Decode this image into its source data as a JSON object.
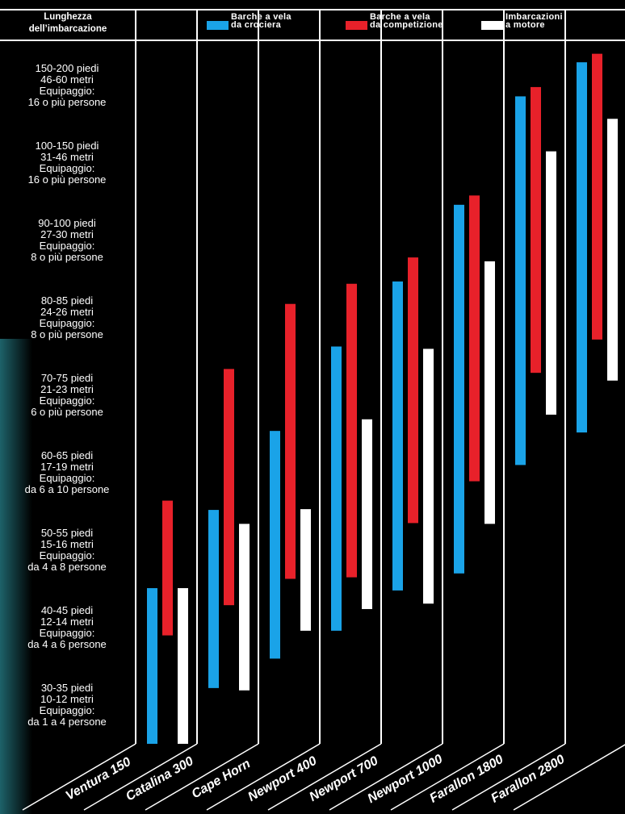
{
  "chart_data": {
    "type": "range-bar",
    "y_header": "Lunghezza\ndell’imbarcazione",
    "categories": [
      "Ventura 150",
      "Catalina 300",
      "Cape Horn",
      "Newport 400",
      "Newport 700",
      "Newport 1000",
      "Farallon 1800",
      "Farallon 2800"
    ],
    "series": [
      {
        "name": "Barche a vela\nda crociera",
        "color": "#1aa3e8",
        "low": [
          0,
          0.72,
          1.1,
          1.46,
          1.98,
          2.2,
          3.6,
          4.02
        ],
        "high": [
          2.01,
          3.02,
          4.04,
          5.13,
          5.97,
          6.96,
          8.36,
          8.8
        ]
      },
      {
        "name": "Barche a vela\nda competizione",
        "color": "#e8212a",
        "low": [
          1.4,
          1.79,
          2.13,
          2.15,
          2.85,
          3.39,
          4.79,
          5.22
        ],
        "high": [
          3.14,
          4.84,
          5.68,
          5.94,
          6.28,
          7.08,
          8.48,
          8.91
        ]
      },
      {
        "name": "Imbarcazioni\na motore",
        "color": "#ffffff",
        "low": [
          0,
          0.69,
          1.46,
          1.74,
          1.81,
          2.84,
          4.25,
          4.69
        ],
        "high": [
          2.01,
          2.84,
          3.03,
          4.19,
          5.1,
          6.23,
          7.65,
          8.07
        ]
      }
    ],
    "ylim": [
      0,
      9
    ],
    "yticks": [
      {
        "value": 0.5,
        "label": "30-35 piedi\n10-12 metri\nEquipaggio:\nda 1 a 4 persone"
      },
      {
        "value": 1.5,
        "label": "40-45 piedi\n12-14 metri\nEquipaggio:\nda 4 a 6 persone"
      },
      {
        "value": 2.5,
        "label": "50-55 piedi\n15-16 metri\nEquipaggio:\nda 4 a 8 persone"
      },
      {
        "value": 3.5,
        "label": "60-65 piedi\n17-19 metri\nEquipaggio:\nda 6 a 10 persone"
      },
      {
        "value": 4.5,
        "label": "70-75 piedi\n21-23 metri\nEquipaggio:\n6 o più persone"
      },
      {
        "value": 5.5,
        "label": "80-85 piedi\n24-26 metri\nEquipaggio:\n8 o più persone"
      },
      {
        "value": 6.5,
        "label": "90-100 piedi\n27-30 metri\nEquipaggio:\n8 o più persone"
      },
      {
        "value": 7.5,
        "label": "100-150 piedi\n31-46 metri\nEquipaggio:\n16 o più persone"
      },
      {
        "value": 8.5,
        "label": "150-200 piedi\n46-60 metri\nEquipaggio:\n16 o più persone"
      }
    ]
  }
}
